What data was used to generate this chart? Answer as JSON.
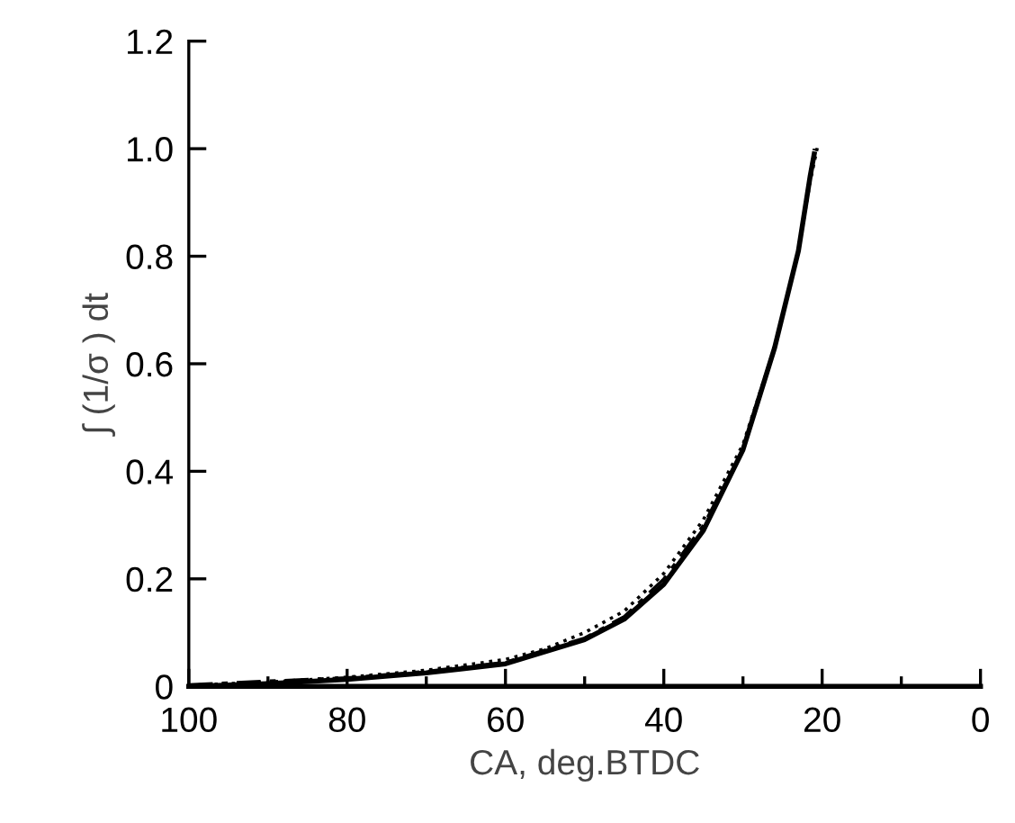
{
  "chart_data": {
    "type": "line",
    "xlabel": "CA, deg.BTDC",
    "ylabel": "∫ (1/σ ) dt",
    "series": [
      {
        "color": "#000000",
        "line_style": "solid",
        "x": [
          100,
          90,
          80,
          70,
          60,
          50,
          45,
          40,
          35,
          30,
          26,
          23,
          21.5,
          21
        ],
        "values": [
          0,
          0.005,
          0.013,
          0.025,
          0.042,
          0.087,
          0.125,
          0.19,
          0.29,
          0.44,
          0.63,
          0.81,
          0.95,
          0.99
        ]
      },
      {
        "color": "#000000",
        "line_style": "dashed",
        "x": [
          100,
          90,
          80,
          70,
          60,
          50,
          45,
          40,
          35,
          30,
          26,
          23,
          21.5,
          21
        ],
        "values": [
          0.003,
          0.01,
          0.016,
          0.028,
          0.045,
          0.09,
          0.13,
          0.2,
          0.3,
          0.44,
          0.63,
          0.81,
          0.95,
          1.0
        ]
      },
      {
        "color": "#000000",
        "line_style": "dotted",
        "x": [
          100,
          90,
          80,
          70,
          60,
          55,
          50,
          45,
          40,
          37.5,
          35,
          30,
          26,
          23,
          21.5,
          20.5
        ],
        "values": [
          0.002,
          0.008,
          0.017,
          0.03,
          0.05,
          0.07,
          0.1,
          0.14,
          0.21,
          0.26,
          0.31,
          0.45,
          0.63,
          0.81,
          0.94,
          1.01
        ]
      }
    ],
    "xlim": [
      100,
      0
    ],
    "ylim": [
      0,
      1.2
    ],
    "xticks": [
      100,
      {
        "value": 90,
        "label": null
      },
      80,
      {
        "value": 70,
        "label": null
      },
      60,
      {
        "value": 50,
        "label": null
      },
      40,
      {
        "value": 30,
        "label": null
      },
      20,
      {
        "value": 10,
        "label": null
      },
      0
    ],
    "yticks": [
      0,
      0.2,
      0.4,
      0.6,
      0.8,
      {
        "value": 1,
        "label": "1.0"
      },
      1.2
    ],
    "grid": false,
    "marker": "none"
  }
}
